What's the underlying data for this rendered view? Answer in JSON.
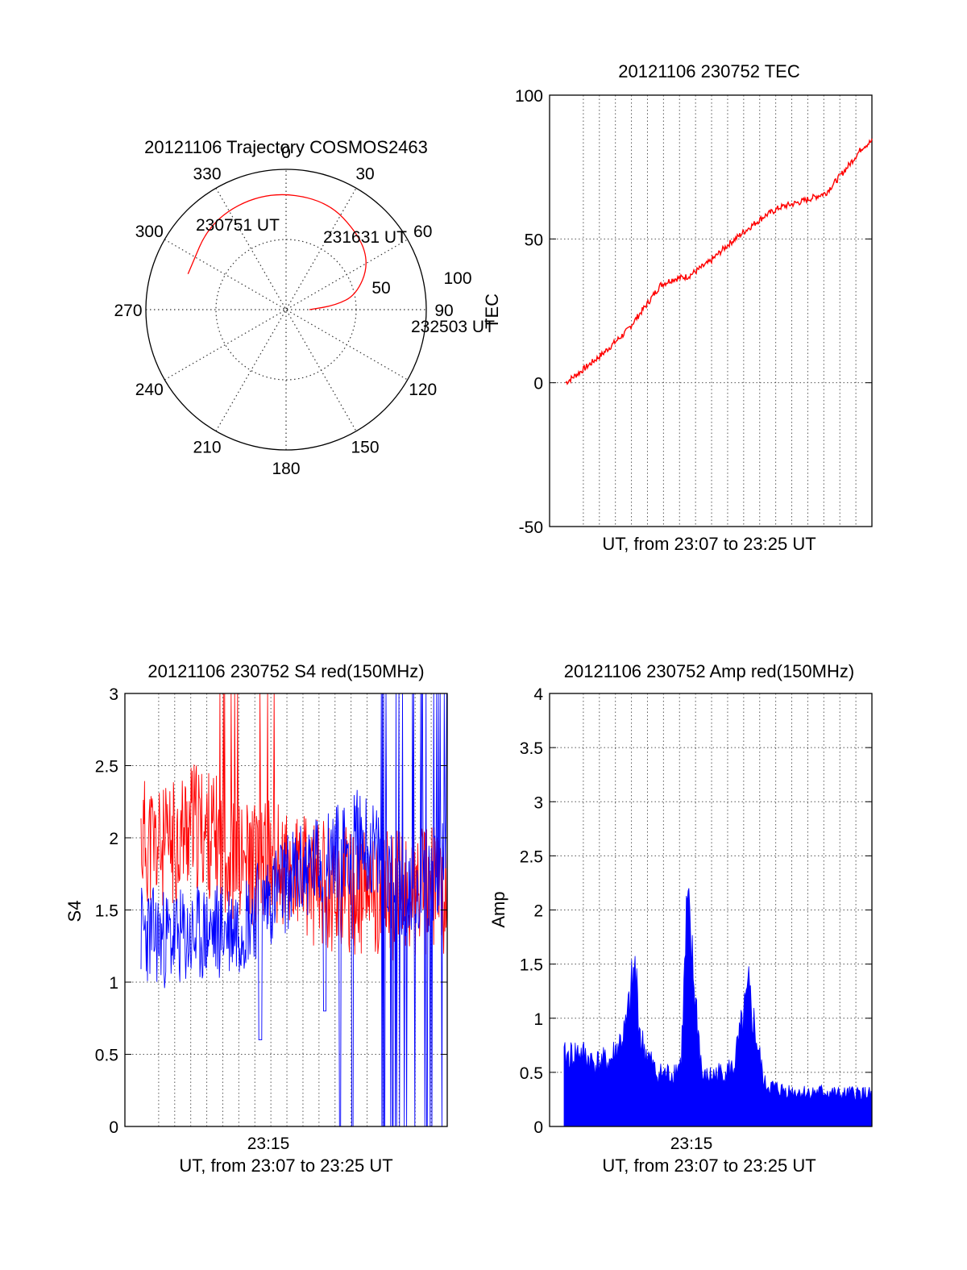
{
  "colors": {
    "red": "#ff0000",
    "blue": "#0000ff",
    "black": "#000000"
  },
  "chart_data": [
    {
      "id": "trajectory",
      "type": "polar",
      "title": "20121106 Trajectory COSMOS2463",
      "azimuth_labels": [
        "0",
        "30",
        "60",
        "90",
        "120",
        "150",
        "180",
        "210",
        "240",
        "270",
        "300",
        "330"
      ],
      "radial_labels": [
        "50",
        "100"
      ],
      "rmax": 90,
      "trajectory": {
        "points": [
          {
            "az": 290,
            "el": 23
          },
          {
            "az": 320,
            "el": 15
          },
          {
            "az": 350,
            "el": 13
          },
          {
            "az": 20,
            "el": 15
          },
          {
            "az": 45,
            "el": 23
          },
          {
            "az": 62,
            "el": 30
          },
          {
            "az": 78,
            "el": 44
          },
          {
            "az": 85,
            "el": 58
          },
          {
            "az": 90,
            "el": 75
          }
        ],
        "start_label": "230751 UT",
        "mid_label": "231631 UT",
        "end_label": "232503 UT"
      }
    },
    {
      "id": "tec",
      "type": "line",
      "title": "20121106 230752 TEC",
      "xlabel": "UT, from 23:07 to 23:25 UT",
      "ylabel": "TEC",
      "ylim": [
        -50,
        100
      ],
      "yticks": [
        "-50",
        "0",
        "50",
        "100"
      ],
      "xticks": [],
      "series": [
        {
          "color": "red",
          "x": [
            0,
            0.05,
            0.12,
            0.2,
            0.27,
            0.31,
            0.35,
            0.4,
            0.47,
            0.53,
            0.6,
            0.65,
            0.7,
            0.77,
            0.85,
            0.92,
            0.97,
            1.0
          ],
          "y": [
            0,
            4,
            10,
            18,
            28,
            34,
            36,
            37,
            42,
            48,
            54,
            58,
            61,
            63,
            66,
            75,
            82,
            84
          ]
        }
      ]
    },
    {
      "id": "s4",
      "type": "line",
      "title": "20121106 230752 S4 red(150MHz)",
      "xlabel": "UT, from 23:07 to 23:25 UT",
      "ylabel": "S4",
      "ylim": [
        0,
        3
      ],
      "yticks": [
        "0",
        "0.5",
        "1",
        "1.5",
        "2",
        "2.5",
        "3"
      ],
      "xticks": [
        "23:15"
      ],
      "series": [
        {
          "color": "red",
          "x": [
            0,
            0.08,
            0.16,
            0.24,
            0.32,
            0.4,
            0.48,
            0.56,
            0.64,
            0.72,
            0.8,
            0.88,
            0.96,
            1.0
          ],
          "y": [
            2.0,
            1.9,
            2.1,
            2.0,
            1.8,
            1.85,
            1.75,
            1.7,
            1.65,
            1.6,
            1.6,
            1.6,
            1.65,
            1.6
          ]
        },
        {
          "color": "blue",
          "x": [
            0,
            0.08,
            0.16,
            0.24,
            0.32,
            0.4,
            0.48,
            0.56,
            0.64,
            0.72,
            0.8,
            0.88,
            0.96,
            1.0
          ],
          "y": [
            1.35,
            1.3,
            1.3,
            1.35,
            1.4,
            1.55,
            1.7,
            1.8,
            1.9,
            2.0,
            1.8,
            1.6,
            1.7,
            1.9
          ]
        }
      ]
    },
    {
      "id": "amp",
      "type": "area",
      "title": "20121106 230752 Amp red(150MHz)",
      "xlabel": "UT, from 23:07 to 23:25 UT",
      "ylabel": "Amp",
      "ylim": [
        0,
        4
      ],
      "yticks": [
        "0",
        "0.5",
        "1",
        "1.5",
        "2",
        "2.5",
        "3",
        "3.5",
        "4"
      ],
      "xticks": [
        "23:15"
      ],
      "series": [
        {
          "color": "blue",
          "x": [
            0,
            0.05,
            0.1,
            0.15,
            0.2,
            0.23,
            0.25,
            0.3,
            0.35,
            0.38,
            0.4,
            0.45,
            0.5,
            0.55,
            0.6,
            0.65,
            0.7,
            0.75,
            0.8,
            0.85,
            0.9,
            0.95,
            1.0
          ],
          "y": [
            0.65,
            0.7,
            0.6,
            0.62,
            0.9,
            1.5,
            0.8,
            0.5,
            0.5,
            0.6,
            2.05,
            0.45,
            0.5,
            0.55,
            1.25,
            0.4,
            0.35,
            0.33,
            0.32,
            0.33,
            0.3,
            0.32,
            0.3
          ]
        }
      ]
    }
  ]
}
